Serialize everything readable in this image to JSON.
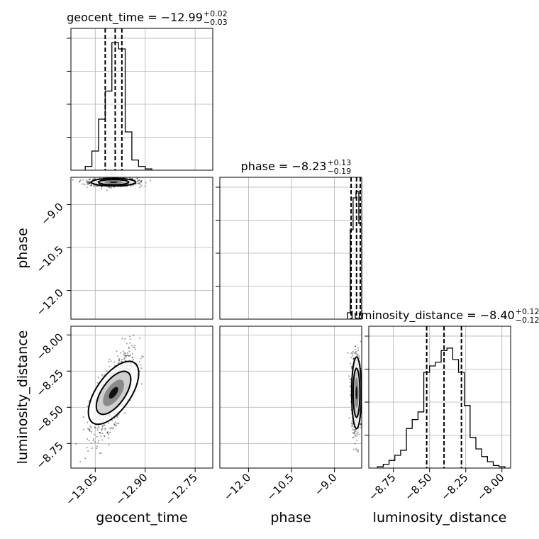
{
  "chart_data": {
    "type": "corner",
    "parameters": [
      "geocent_time",
      "phase",
      "luminosity_distance"
    ],
    "titles": [
      {
        "param": "geocent_time",
        "text": "geocent_time = −12.99",
        "plus": "+0.02",
        "minus": "−0.03"
      },
      {
        "param": "phase",
        "text": "phase = −8.23",
        "plus": "+0.13",
        "minus": "−0.19"
      },
      {
        "param": "luminosity_distance",
        "text": "luminosity_distance = −8.40",
        "plus": "+0.12",
        "minus": "−0.12"
      }
    ],
    "axis_labels": {
      "x": [
        "geocent_time",
        "phase",
        "luminosity_distance"
      ],
      "y": [
        "phase",
        "luminosity_distance"
      ]
    },
    "ranges": {
      "geocent_time": [
        -13.123,
        -12.697
      ],
      "phase": [
        -13.0,
        -8.05
      ],
      "luminosity_distance": [
        -8.92,
        -7.94
      ]
    },
    "ticks": {
      "geocent_time": [
        -13.05,
        -12.9,
        -12.75
      ],
      "phase": [
        -12.0,
        -10.5,
        -9.0
      ],
      "luminosity_distance": [
        -8.75,
        -8.5,
        -8.25,
        -8.0
      ]
    },
    "tick_labels": {
      "geocent_time": [
        "−13.05",
        "−12.90",
        "−12.75"
      ],
      "phase": [
        "−12.0",
        "−10.5",
        "−9.0"
      ],
      "luminosity_distance": [
        "−8.75",
        "−8.50",
        "−8.25",
        "−8.00"
      ]
    },
    "quantiles": {
      "geocent_time": [
        -13.02,
        -12.99,
        -12.97
      ],
      "phase": [
        -8.42,
        -8.23,
        -8.1
      ],
      "luminosity_distance": [
        -8.52,
        -8.4,
        -8.28
      ]
    },
    "histograms": {
      "geocent_time": {
        "edges": [
          -13.08,
          -13.06,
          -13.04,
          -13.02,
          -13.0,
          -12.98,
          -12.96,
          -12.94,
          -12.92,
          -12.9,
          -12.88
        ],
        "counts": [
          0.03,
          0.15,
          0.4,
          0.62,
          1.0,
          0.95,
          0.3,
          0.08,
          0.03,
          0.01
        ]
      },
      "phase": {
        "edges": [
          -8.55,
          -8.45,
          -8.35,
          -8.25,
          -8.15,
          -8.05
        ],
        "counts": [
          0.05,
          0.7,
          0.95,
          1.0,
          0.75
        ]
      },
      "luminosity_distance": {
        "edges": [
          -8.86,
          -8.82,
          -8.78,
          -8.74,
          -8.7,
          -8.66,
          -8.62,
          -8.58,
          -8.54,
          -8.5,
          -8.46,
          -8.42,
          -8.38,
          -8.34,
          -8.3,
          -8.26,
          -8.22,
          -8.18,
          -8.14,
          -8.1,
          -8.06,
          -8.02,
          -7.98
        ],
        "counts": [
          0.01,
          0.03,
          0.06,
          0.1,
          0.14,
          0.31,
          0.38,
          0.44,
          0.75,
          0.8,
          0.83,
          0.92,
          0.94,
          0.85,
          0.75,
          0.49,
          0.24,
          0.15,
          0.09,
          0.05,
          0.02,
          0.01
        ]
      }
    },
    "samples_2d": [
      {
        "x": "geocent_time",
        "y": "phase",
        "center": [
          -12.995,
          -8.22
        ],
        "spread": [
          0.035,
          0.07
        ],
        "corr": 0.0
      },
      {
        "x": "geocent_time",
        "y": "luminosity_distance",
        "center": [
          -12.995,
          -8.4
        ],
        "spread": [
          0.03,
          0.14
        ],
        "corr": 0.7
      },
      {
        "x": "phase",
        "y": "luminosity_distance",
        "center": [
          -8.23,
          -8.4
        ],
        "spread": [
          0.09,
          0.13
        ],
        "corr": 0.0
      }
    ],
    "grid": true
  }
}
